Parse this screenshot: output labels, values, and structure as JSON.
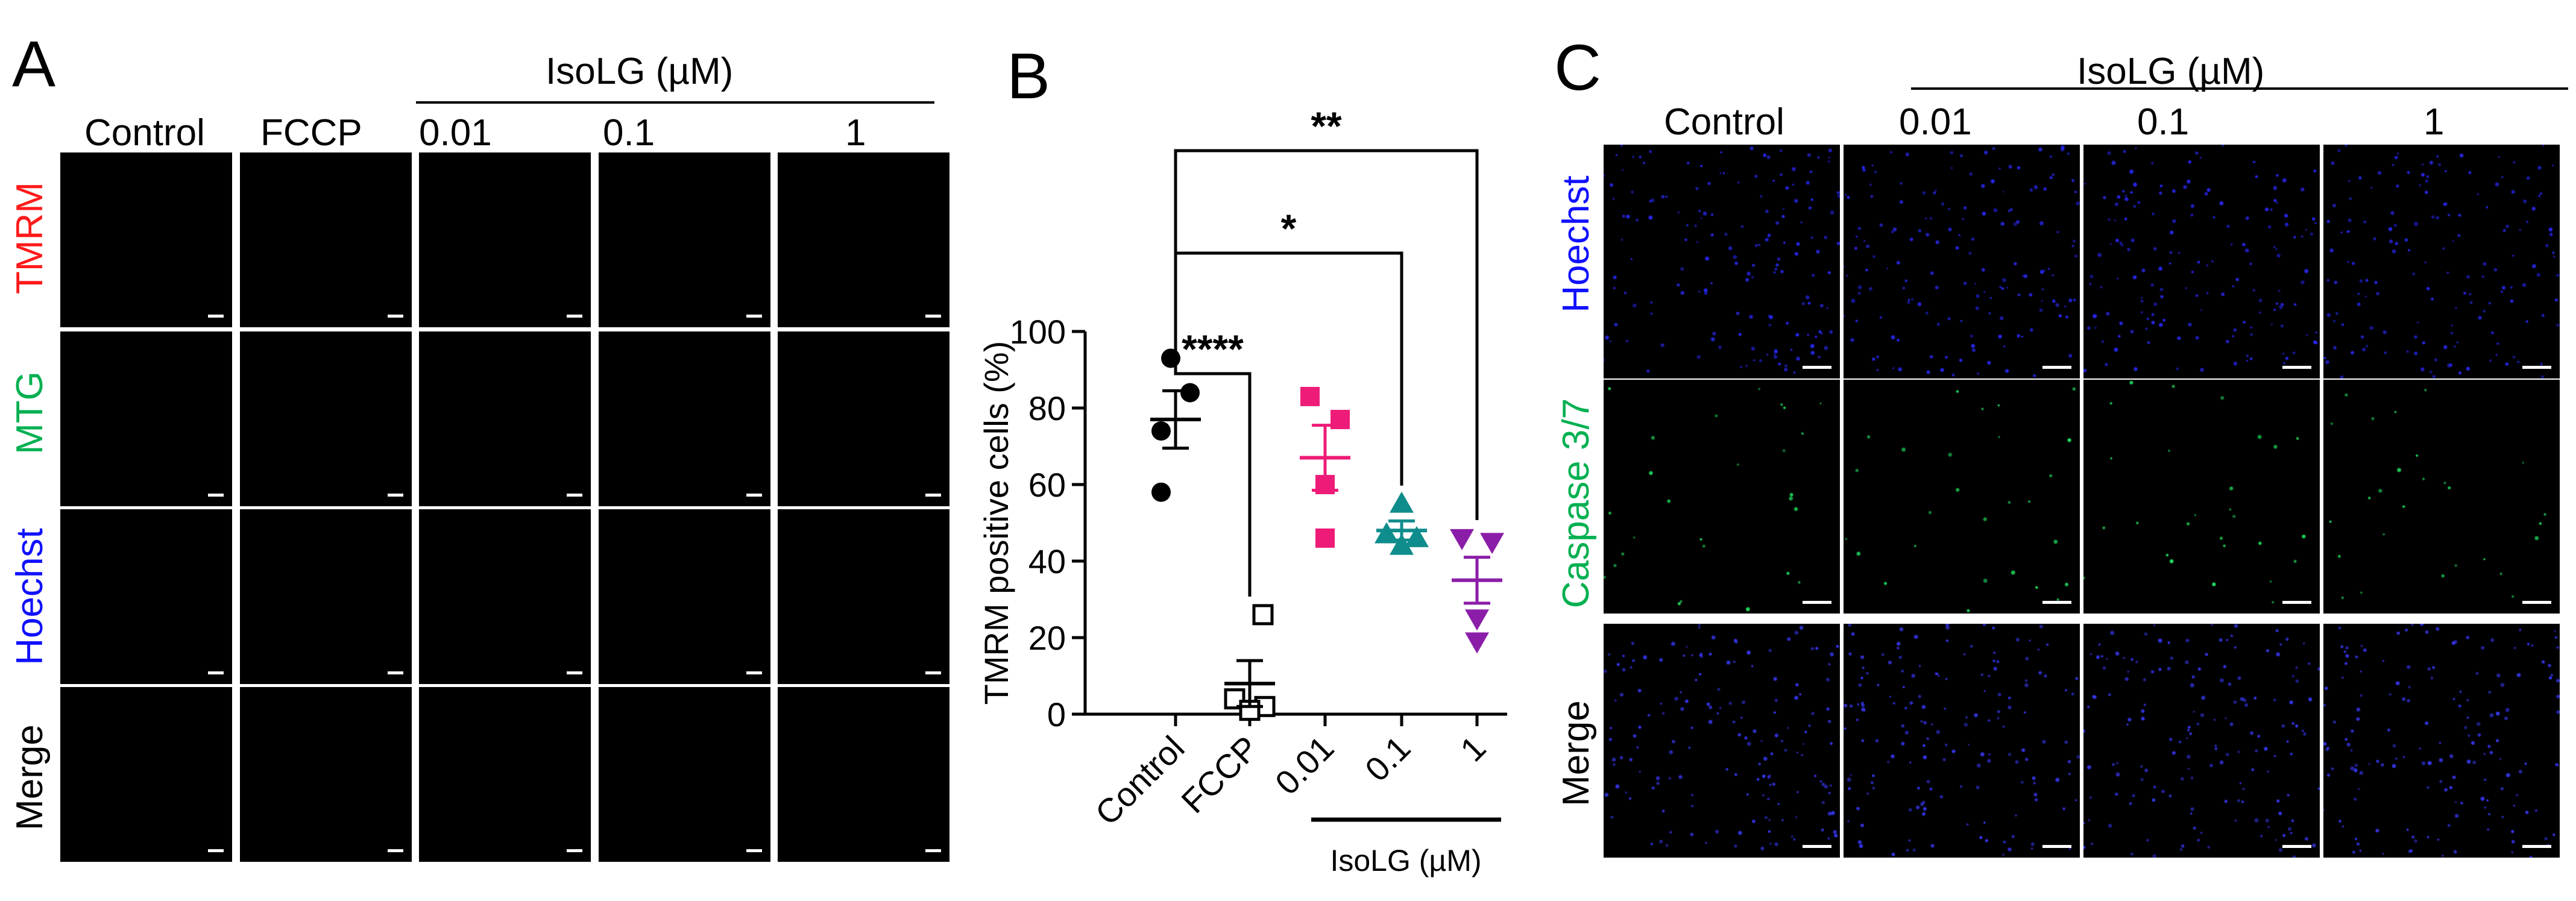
{
  "panelA": {
    "letter": "A",
    "group_label": "IsoLG (µM)",
    "columns": [
      "Control",
      "FCCP",
      "0.01",
      "0.1",
      "1"
    ],
    "rows": [
      {
        "label": "TMRM",
        "color": "#ff1a1a"
      },
      {
        "label": "MTG",
        "color": "#00b050"
      },
      {
        "label": "Hoechst",
        "color": "#1010ff"
      },
      {
        "label": "Merge",
        "color": "#000000"
      }
    ]
  },
  "panelB": {
    "letter": "B",
    "chart_data": {
      "type": "scatter",
      "ylabel": "TMRM positive cells (%)",
      "xlabel": "IsoLG (µM)",
      "ylim": [
        0,
        100
      ],
      "yticks": [
        "0",
        "20",
        "40",
        "60",
        "80",
        "100"
      ],
      "categories": [
        "Control",
        "FCCP",
        "0.01",
        "0.1",
        "1"
      ],
      "series": [
        {
          "category": "Control",
          "color": "#000000",
          "marker": "circle-filled",
          "values": [
            93,
            84,
            74,
            58
          ],
          "mean": 77,
          "sem": 7.5
        },
        {
          "category": "FCCP",
          "color": "#000000",
          "marker": "square-open",
          "values": [
            26,
            4,
            2,
            1
          ],
          "mean": 8,
          "sem": 6
        },
        {
          "category": "0.01",
          "color": "#ee1c78",
          "marker": "square-filled",
          "values": [
            83,
            77,
            60,
            46
          ],
          "mean": 67,
          "sem": 8.5
        },
        {
          "category": "0.1",
          "color": "#0f8c8c",
          "marker": "triangle-up-filled",
          "values": [
            55,
            47,
            46,
            44
          ],
          "mean": 48,
          "sem": 2.5
        },
        {
          "category": "1",
          "color": "#8b1ea8",
          "marker": "triangle-down-filled",
          "values": [
            46,
            45,
            25,
            19
          ],
          "mean": 35,
          "sem": 6
        }
      ],
      "significance": [
        {
          "from": "Control",
          "to": "1",
          "label": "**"
        },
        {
          "from": "Control",
          "to": "0.1",
          "label": "*"
        },
        {
          "from": "Control",
          "to": "FCCP",
          "label": "****"
        }
      ]
    }
  },
  "panelC": {
    "letter": "C",
    "group_label": "IsoLG (µM)",
    "columns": [
      "Control",
      "0.01",
      "0.1",
      "1"
    ],
    "rows": [
      {
        "label": "Hoechst",
        "color": "#1010ff"
      },
      {
        "label": "Caspase 3/7",
        "color": "#00b050"
      },
      {
        "label": "Merge",
        "color": "#000000"
      }
    ]
  }
}
